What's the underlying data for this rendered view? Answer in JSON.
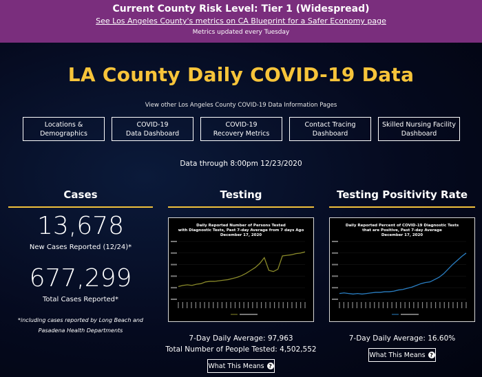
{
  "banner": {
    "title": "Current County Risk Level: Tier 1 (Widespread)",
    "link": "See Los Angeles County's metrics on CA Blueprint for a Safer Economy page",
    "note": "Metrics updated every Tuesday",
    "color": "#7a2e7d"
  },
  "header": {
    "title": "LA County Daily COVID-19 Data",
    "subtitle": "View other Los Angeles County COVID-19 Data Information Pages",
    "title_color": "#f7c43a"
  },
  "nav": [
    {
      "label": "Locations &\nDemographics"
    },
    {
      "label": "COVID-19\nData Dashboard"
    },
    {
      "label": "COVID-19\nRecovery Metrics"
    },
    {
      "label": "Contact Tracing\nDashboard"
    },
    {
      "label": "Skilled Nursing Facility\nDashboard"
    }
  ],
  "data_through": "Data through 8:00pm 12/23/2020",
  "cases": {
    "heading": "Cases",
    "new_cases": "13,678",
    "new_cases_label": "New Cases Reported (12/24)*",
    "total_cases": "677,299",
    "total_cases_label": "Total Cases Reported*",
    "footnote": "*including cases reported by Long Beach and Pasadena Health Departments"
  },
  "testing": {
    "heading": "Testing",
    "chart_title": "Daily Reported Number of Persons Tested\nwith Diagnostic Tests, Past 7-day Average from 7 days Ago\nDecember 17, 2020",
    "avg_line": "7-Day Daily Average: 97,963",
    "total_line": "Total Number of People Tested: 4,502,552",
    "button": "What This Means",
    "line_color": "#8a8a2a"
  },
  "positivity": {
    "heading": "Testing Positivity Rate",
    "chart_title": "Daily Reported Percent of COVID-19 Diagnostic Tests\nthat are Positive, Past 7-day Average\nDecember 17, 2020",
    "avg_line": "7-Day Daily Average: 16.60%",
    "button": "What This Means",
    "line_color": "#2a7fc4"
  },
  "chart_data": [
    {
      "type": "line",
      "title": "Daily Reported Number of Persons Tested with Diagnostic Tests, Past 7-day Average from 7 days Ago December 17, 2020",
      "series": [
        {
          "values": [
            22,
            24,
            25,
            24,
            26,
            27,
            30,
            31,
            31,
            32,
            33,
            34,
            36,
            38,
            41,
            45,
            50,
            55,
            62,
            72,
            50,
            48,
            52,
            75,
            76,
            77,
            79,
            80,
            82
          ]
        }
      ]
    },
    {
      "type": "line",
      "title": "Daily Reported Percent of COVID-19 Diagnostic Tests that are Positive, Past 7-day Average December 17, 2020",
      "series": [
        {
          "values": [
            10,
            11,
            10,
            9,
            10,
            9,
            10,
            11,
            12,
            12,
            13,
            13,
            14,
            16,
            17,
            19,
            21,
            24,
            27,
            29,
            30,
            34,
            38,
            44,
            52,
            60,
            67,
            74,
            80
          ]
        }
      ]
    }
  ],
  "icons": {
    "question": "question-circle-icon"
  }
}
